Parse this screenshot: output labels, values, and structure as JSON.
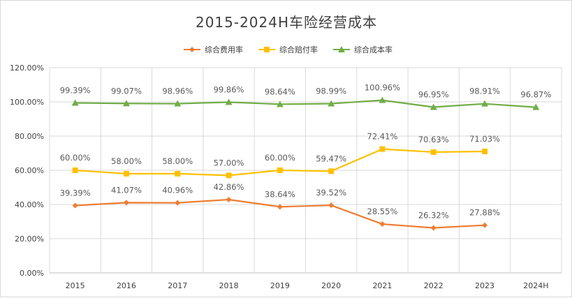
{
  "chart_data": {
    "type": "line",
    "title": "2015-2024H车险经营成本",
    "categories": [
      "2015",
      "2016",
      "2017",
      "2018",
      "2019",
      "2020",
      "2021",
      "2022",
      "2023",
      "2024H"
    ],
    "yticks": [
      "0.00%",
      "20.00%",
      "40.00%",
      "60.00%",
      "80.00%",
      "100.00%",
      "120.00%"
    ],
    "ylim": [
      0,
      120
    ],
    "legend_position": "top",
    "grid": true,
    "series": [
      {
        "name": "综合费用率",
        "color": "#ED7D31",
        "marker": "diamond",
        "values": [
          39.39,
          41.07,
          40.96,
          42.86,
          38.64,
          39.52,
          28.55,
          26.32,
          27.88,
          null
        ],
        "labels": [
          "39.39%",
          "41.07%",
          "40.96%",
          "42.86%",
          "38.64%",
          "39.52%",
          "28.55%",
          "26.32%",
          "27.88%",
          ""
        ]
      },
      {
        "name": "综合赔付率",
        "color": "#FFC000",
        "marker": "square",
        "values": [
          60.0,
          58.0,
          58.0,
          57.0,
          60.0,
          59.47,
          72.41,
          70.63,
          71.03,
          null
        ],
        "labels": [
          "60.00%",
          "58.00%",
          "58.00%",
          "57.00%",
          "60.00%",
          "59.47%",
          "72.41%",
          "70.63%",
          "71.03%",
          ""
        ]
      },
      {
        "name": "综合成本率",
        "color": "#70AD47",
        "marker": "triangle",
        "values": [
          99.39,
          99.07,
          98.96,
          99.86,
          98.64,
          98.99,
          100.96,
          96.95,
          98.91,
          96.87
        ],
        "labels": [
          "99.39%",
          "99.07%",
          "98.96%",
          "99.86%",
          "98.64%",
          "98.99%",
          "100.96%",
          "96.95%",
          "98.91%",
          "96.87%"
        ]
      }
    ]
  }
}
